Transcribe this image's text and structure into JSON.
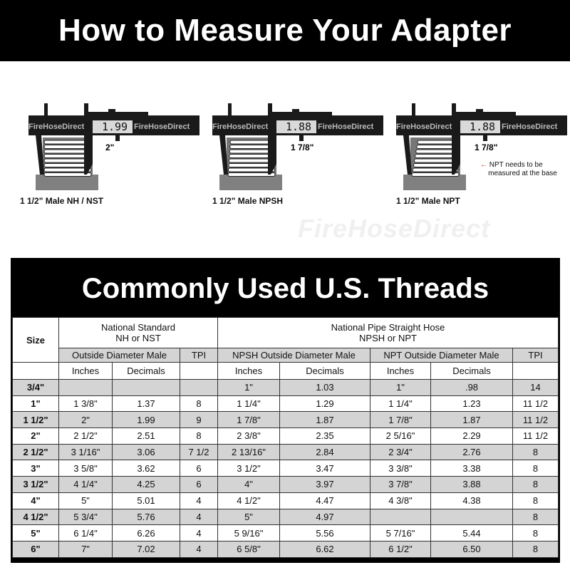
{
  "banner": {
    "title": "How to Measure Your Adapter"
  },
  "calipers": [
    {
      "reading": "1.99",
      "measurement": "2\"",
      "label": "1 1/2\" Male NH / NST",
      "brand": "FireHoseDirect"
    },
    {
      "reading": "1.88",
      "measurement": "1 7/8\"",
      "label": "1 1/2\" Male NPSH",
      "brand": "FireHoseDirect"
    },
    {
      "reading": "1.88",
      "measurement": "1 7/8\"",
      "label": "1 1/2\" Male NPT",
      "brand": "FireHoseDirect",
      "note_line1": "NPT needs to be",
      "note_line2": "measured at the base"
    }
  ],
  "watermark": "FireHoseDirect",
  "table": {
    "title": "Commonly Used U.S. Threads",
    "size_header": "Size",
    "group1_line1": "National Standard",
    "group1_line2": "NH or NST",
    "group2_line1": "National Pipe Straight Hose",
    "group2_line2": "NPSH or NPT",
    "sub": [
      "Outside Diameter Male",
      "TPI",
      "NPSH Outside Diameter Male",
      "NPT Outside Diameter Male",
      "TPI"
    ],
    "units": [
      "Inches",
      "Decimals",
      "Inches",
      "Decimals",
      "Inches",
      "Decimals"
    ],
    "rows": [
      [
        "3/4\"",
        "",
        "",
        "",
        "1\"",
        "1.03",
        "1\"",
        ".98",
        "14"
      ],
      [
        "1\"",
        "1 3/8\"",
        "1.37",
        "8",
        "1 1/4\"",
        "1.29",
        "1 1/4\"",
        "1.23",
        "11 1/2"
      ],
      [
        "1 1/2\"",
        "2\"",
        "1.99",
        "9",
        "1 7/8\"",
        "1.87",
        "1 7/8\"",
        "1.87",
        "11 1/2"
      ],
      [
        "2\"",
        "2 1/2\"",
        "2.51",
        "8",
        "2 3/8\"",
        "2.35",
        "2 5/16\"",
        "2.29",
        "11 1/2"
      ],
      [
        "2 1/2\"",
        "3 1/16\"",
        "3.06",
        "7 1/2",
        "2 13/16\"",
        "2.84",
        "2 3/4\"",
        "2.76",
        "8"
      ],
      [
        "3\"",
        "3 5/8\"",
        "3.62",
        "6",
        "3 1/2\"",
        "3.47",
        "3 3/8\"",
        "3.38",
        "8"
      ],
      [
        "3 1/2\"",
        "4 1/4\"",
        "4.25",
        "6",
        "4\"",
        "3.97",
        "3 7/8\"",
        "3.88",
        "8"
      ],
      [
        "4\"",
        "5\"",
        "5.01",
        "4",
        "4 1/2\"",
        "4.47",
        "4 3/8\"",
        "4.38",
        "8"
      ],
      [
        "4 1/2\"",
        "5 3/4\"",
        "5.76",
        "4",
        "5\"",
        "4.97",
        "",
        "",
        "8"
      ],
      [
        "5\"",
        "6 1/4\"",
        "6.26",
        "4",
        "5 9/16\"",
        "5.56",
        "5 7/16\"",
        "5.44",
        "8"
      ],
      [
        "6\"",
        "7\"",
        "7.02",
        "4",
        "6 5/8\"",
        "6.62",
        "6 1/2\"",
        "6.50",
        "8"
      ]
    ]
  }
}
